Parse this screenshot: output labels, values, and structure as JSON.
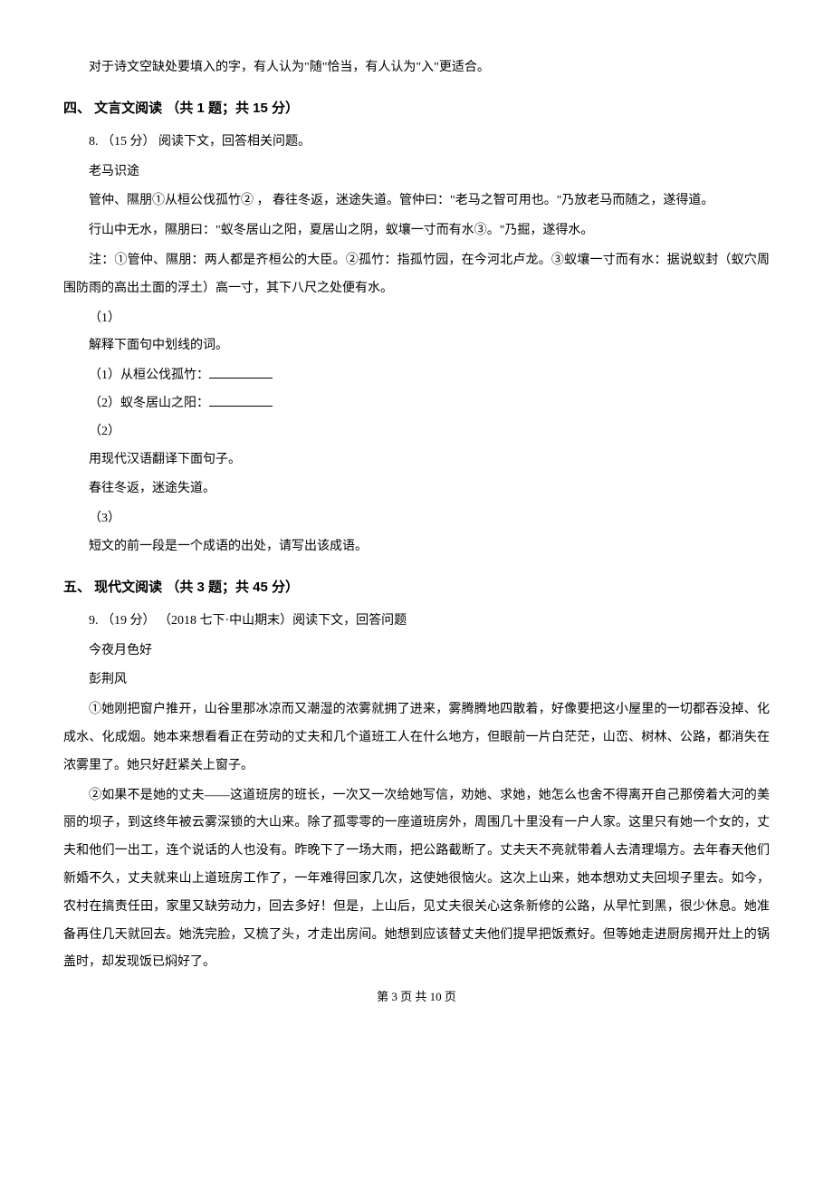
{
  "intro_line": "对于诗文空缺处要填入的字，有人认为\"随\"恰当，有人认为\"入\"更适合。",
  "section4": {
    "heading": "四、 文言文阅读 （共 1 题；共 15 分）",
    "question_num": "8. （15 分） 阅读下文，回答相关问题。",
    "title": "老马识途",
    "para1": "管仲、隰朋①从桓公伐孤竹② ， 春往冬返，迷途失道。管仲曰：\"老马之智可用也。\"乃放老马而随之，遂得道。",
    "para2": "行山中无水，隰朋曰：\"蚁冬居山之阳，夏居山之阴，蚁壤一寸而有水③。\"乃掘，遂得水。",
    "para3": "注：①管仲、隰朋：两人都是齐桓公的大臣。②孤竹：指孤竹园，在今河北卢龙。③蚁壤一寸而有水：据说蚁封（蚁穴周围防雨的高出土面的浮土）高一寸，其下八尺之处便有水。",
    "q1_label": "（1）",
    "q1_text": "解释下面句中划线的词。",
    "q1_item1": "（1）从桓公伐孤竹：",
    "q1_item2": "（2）蚁冬居山之阳：",
    "q2_label": "（2）",
    "q2_text": "用现代汉语翻译下面句子。",
    "q2_sentence": "春往冬返，迷途失道。",
    "q3_label": "（3）",
    "q3_text": "短文的前一段是一个成语的出处，请写出该成语。"
  },
  "section5": {
    "heading": "五、 现代文阅读 （共 3 题；共 45 分）",
    "question_num": "9. （19 分） （2018 七下·中山期末）阅读下文，回答问题",
    "title": "今夜月色好",
    "author": "彭荆风",
    "para1": "①她刚把窗户推开，山谷里那冰凉而又潮湿的浓雾就拥了进来，雾腾腾地四散着，好像要把这小屋里的一切都吞没掉、化成水、化成烟。她本来想看看正在劳动的丈夫和几个道班工人在什么地方，但眼前一片白茫茫，山峦、树林、公路，都消失在浓雾里了。她只好赶紧关上窗子。",
    "para2": "②如果不是她的丈夫——这道班房的班长，一次又一次给她写信，劝她、求她，她怎么也舍不得离开自己那傍着大河的美丽的坝子，到这终年被云雾深锁的大山来。除了孤零零的一座道班房外，周围几十里没有一户人家。这里只有她一个女的，丈夫和他们一出工，连个说话的人也没有。昨晚下了一场大雨，把公路截断了。丈夫天不亮就带着人去清理塌方。去年春天他们新婚不久，丈夫就来山上道班房工作了，一年难得回家几次，这使她很恼火。这次上山来，她本想劝丈夫回坝子里去。如今，农村在搞责任田，家里又缺劳动力，回去多好！但是，上山后，见丈夫很关心这条新修的公路，从早忙到黑，很少休息。她准备再住几天就回去。她洗完脸，又梳了头，才走出房间。她想到应该替丈夫他们提早把饭煮好。但等她走进厨房揭开灶上的锅盖时，却发现饭已焖好了。"
  },
  "footer": "第 3 页 共 10 页"
}
